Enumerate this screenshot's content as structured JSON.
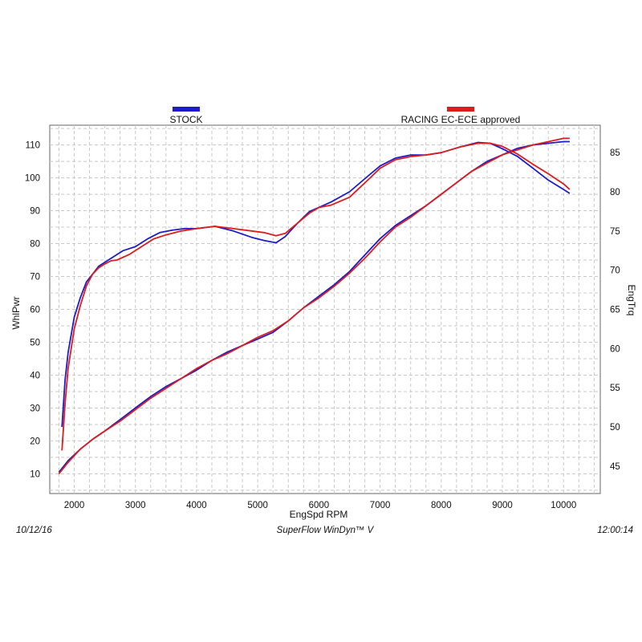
{
  "chart_data": {
    "type": "line",
    "x_axis": {
      "label": "EngSpd  RPM",
      "ticks": [
        2000,
        3000,
        4000,
        5000,
        6000,
        7000,
        8000,
        9000,
        10000
      ],
      "range": [
        1600,
        10600
      ]
    },
    "y_left": {
      "label": "WhlPwr",
      "ticks": [
        10,
        20,
        30,
        40,
        50,
        60,
        70,
        80,
        90,
        100,
        110
      ],
      "range": [
        4,
        116
      ]
    },
    "y_right": {
      "label": "EngTrq",
      "ticks": [
        45,
        50,
        55,
        60,
        65,
        70,
        75,
        80,
        85
      ],
      "range": [
        41.5,
        88.5
      ]
    },
    "grid": "dashed",
    "legend": [
      {
        "name": "STOCK",
        "color": "#1c1ccc"
      },
      {
        "name": "RACING EC-ECE approved",
        "color": "#dd1c1c"
      }
    ],
    "series": [
      {
        "name": "STOCK",
        "axis": "left",
        "metric": "WhlPwr",
        "color": "#1c1ccc",
        "points": [
          [
            1750,
            10.5
          ],
          [
            1900,
            14
          ],
          [
            2100,
            17.5
          ],
          [
            2300,
            20.5
          ],
          [
            2500,
            23
          ],
          [
            2750,
            26.5
          ],
          [
            3000,
            30
          ],
          [
            3250,
            33.5
          ],
          [
            3500,
            36.5
          ],
          [
            3750,
            39
          ],
          [
            4000,
            41.5
          ],
          [
            4250,
            44.5
          ],
          [
            4500,
            47
          ],
          [
            4750,
            49
          ],
          [
            5000,
            51
          ],
          [
            5250,
            53
          ],
          [
            5500,
            56.5
          ],
          [
            5750,
            60.5
          ],
          [
            6000,
            64
          ],
          [
            6250,
            67.5
          ],
          [
            6500,
            71.5
          ],
          [
            6750,
            76.5
          ],
          [
            7000,
            81.5
          ],
          [
            7250,
            85.5
          ],
          [
            7500,
            88.5
          ],
          [
            7750,
            91.5
          ],
          [
            8000,
            95
          ],
          [
            8250,
            98.5
          ],
          [
            8500,
            102
          ],
          [
            8750,
            105
          ],
          [
            9000,
            107
          ],
          [
            9250,
            109
          ],
          [
            9500,
            110
          ],
          [
            9750,
            110.5
          ],
          [
            10000,
            111
          ],
          [
            10100,
            111
          ]
        ]
      },
      {
        "name": "STOCK",
        "axis": "right",
        "metric": "EngTrq",
        "color": "#1c1ccc",
        "points": [
          [
            1800,
            50
          ],
          [
            1850,
            56
          ],
          [
            1900,
            59.5
          ],
          [
            2000,
            64
          ],
          [
            2100,
            66.5
          ],
          [
            2200,
            68.5
          ],
          [
            2300,
            69.5
          ],
          [
            2400,
            70.5
          ],
          [
            2600,
            71.5
          ],
          [
            2800,
            72.5
          ],
          [
            3000,
            73
          ],
          [
            3200,
            74
          ],
          [
            3400,
            74.8
          ],
          [
            3600,
            75.1
          ],
          [
            3800,
            75.3
          ],
          [
            4000,
            75.3
          ],
          [
            4300,
            75.6
          ],
          [
            4600,
            75
          ],
          [
            4900,
            74.2
          ],
          [
            5100,
            73.8
          ],
          [
            5300,
            73.5
          ],
          [
            5450,
            74.3
          ],
          [
            5650,
            76
          ],
          [
            5850,
            77.5
          ],
          [
            6000,
            78
          ],
          [
            6200,
            78.7
          ],
          [
            6500,
            80
          ],
          [
            6800,
            82
          ],
          [
            7000,
            83.3
          ],
          [
            7250,
            84.3
          ],
          [
            7500,
            84.7
          ],
          [
            7750,
            84.7
          ],
          [
            8000,
            85
          ],
          [
            8300,
            85.7
          ],
          [
            8600,
            86.3
          ],
          [
            8800,
            86.2
          ],
          [
            9000,
            85.5
          ],
          [
            9250,
            84.5
          ],
          [
            9500,
            83
          ],
          [
            9750,
            81.5
          ],
          [
            10000,
            80.3
          ],
          [
            10100,
            79.8
          ]
        ]
      },
      {
        "name": "RACING EC-ECE approved",
        "axis": "left",
        "metric": "WhlPwr",
        "color": "#dd1c1c",
        "points": [
          [
            1750,
            10
          ],
          [
            1900,
            13.5
          ],
          [
            2100,
            17.5
          ],
          [
            2300,
            20.5
          ],
          [
            2500,
            23
          ],
          [
            2750,
            26
          ],
          [
            3000,
            29.5
          ],
          [
            3250,
            33
          ],
          [
            3500,
            36
          ],
          [
            3750,
            39
          ],
          [
            4000,
            42
          ],
          [
            4250,
            44.5
          ],
          [
            4500,
            46.5
          ],
          [
            4750,
            49
          ],
          [
            5000,
            51.5
          ],
          [
            5250,
            53.5
          ],
          [
            5500,
            56.5
          ],
          [
            5750,
            60.5
          ],
          [
            6000,
            63.5
          ],
          [
            6250,
            67
          ],
          [
            6500,
            71
          ],
          [
            6750,
            75.5
          ],
          [
            7000,
            80.5
          ],
          [
            7250,
            85
          ],
          [
            7500,
            88
          ],
          [
            7750,
            91.5
          ],
          [
            8000,
            95
          ],
          [
            8250,
            98.5
          ],
          [
            8500,
            102
          ],
          [
            8750,
            104.5
          ],
          [
            9000,
            107
          ],
          [
            9250,
            108.5
          ],
          [
            9500,
            110
          ],
          [
            9750,
            111
          ],
          [
            10000,
            112
          ],
          [
            10100,
            112
          ]
        ]
      },
      {
        "name": "RACING EC-ECE approved",
        "axis": "right",
        "metric": "EngTrq",
        "color": "#dd1c1c",
        "points": [
          [
            1800,
            47
          ],
          [
            1850,
            53
          ],
          [
            1900,
            57.5
          ],
          [
            2000,
            62.5
          ],
          [
            2100,
            65.5
          ],
          [
            2200,
            68
          ],
          [
            2300,
            69.5
          ],
          [
            2400,
            70.3
          ],
          [
            2500,
            70.8
          ],
          [
            2600,
            71.2
          ],
          [
            2700,
            71.3
          ],
          [
            2900,
            72
          ],
          [
            3100,
            73
          ],
          [
            3300,
            74
          ],
          [
            3500,
            74.5
          ],
          [
            3750,
            75
          ],
          [
            4000,
            75.3
          ],
          [
            4300,
            75.6
          ],
          [
            4600,
            75.3
          ],
          [
            4900,
            75
          ],
          [
            5100,
            74.8
          ],
          [
            5300,
            74.4
          ],
          [
            5450,
            74.7
          ],
          [
            5650,
            76
          ],
          [
            5850,
            77.3
          ],
          [
            6000,
            78
          ],
          [
            6200,
            78.3
          ],
          [
            6500,
            79.3
          ],
          [
            6800,
            81.5
          ],
          [
            7000,
            83
          ],
          [
            7250,
            84.1
          ],
          [
            7500,
            84.5
          ],
          [
            7750,
            84.7
          ],
          [
            8000,
            85
          ],
          [
            8300,
            85.7
          ],
          [
            8600,
            86.2
          ],
          [
            8800,
            86.2
          ],
          [
            9000,
            85.8
          ],
          [
            9250,
            84.8
          ],
          [
            9500,
            83.5
          ],
          [
            9750,
            82.3
          ],
          [
            10000,
            81
          ],
          [
            10100,
            80.3
          ]
        ]
      }
    ]
  },
  "footer": {
    "date": "10/12/16",
    "software": "SuperFlow WinDyn™ V",
    "time": "12:00:14"
  }
}
